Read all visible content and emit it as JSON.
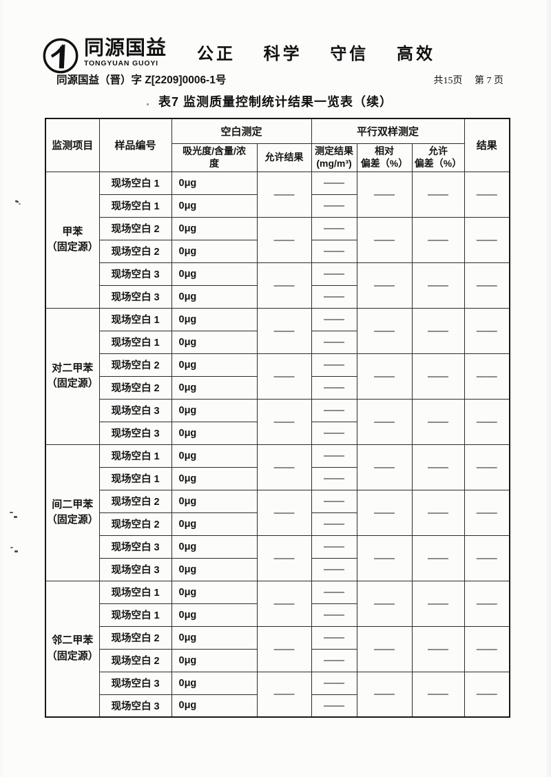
{
  "header": {
    "logo": {
      "name": "同源国益",
      "latin": "TONGYUAN GUOYI"
    },
    "slogan": {
      "items": [
        "公正",
        "科学",
        "守信",
        "高效"
      ]
    },
    "doc_number": "同源国益（晋）字 Z[2209]0006-1号",
    "pagination": {
      "total": "共15页",
      "current": "第 7 页"
    }
  },
  "title": "表7 监测质量控制统计结果一览表（续）",
  "table": {
    "columns": {
      "project": "监测项目",
      "sample_id": "样品编号",
      "blank_group": "空白测定",
      "parallel_group": "平行双样测定",
      "absorbance": "吸光度/含量/浓\n度",
      "allowed_result": "允许结果",
      "measured": "测定结果\n(mg/m³)",
      "relative_dev": "相对\n偏差（%）",
      "allowed_dev": "允许\n偏差（%）",
      "result": "结果"
    },
    "dash": "——",
    "groups": [
      {
        "project": "甲苯\n（固定源）",
        "rows": [
          {
            "sample": "现场空白 1",
            "blank_value": "0μg"
          },
          {
            "sample": "现场空白 1",
            "blank_value": "0μg"
          },
          {
            "sample": "现场空白 2",
            "blank_value": "0μg"
          },
          {
            "sample": "现场空白 2",
            "blank_value": "0μg"
          },
          {
            "sample": "现场空白 3",
            "blank_value": "0μg"
          },
          {
            "sample": "现场空白 3",
            "blank_value": "0μg"
          }
        ]
      },
      {
        "project": "对二甲苯\n（固定源）",
        "rows": [
          {
            "sample": "现场空白 1",
            "blank_value": "0μg"
          },
          {
            "sample": "现场空白 1",
            "blank_value": "0μg"
          },
          {
            "sample": "现场空白 2",
            "blank_value": "0μg"
          },
          {
            "sample": "现场空白 2",
            "blank_value": "0μg"
          },
          {
            "sample": "现场空白 3",
            "blank_value": "0μg"
          },
          {
            "sample": "现场空白 3",
            "blank_value": "0μg"
          }
        ]
      },
      {
        "project": "间二甲苯\n（固定源）",
        "rows": [
          {
            "sample": "现场空白 1",
            "blank_value": "0μg"
          },
          {
            "sample": "现场空白 1",
            "blank_value": "0μg"
          },
          {
            "sample": "现场空白 2",
            "blank_value": "0μg"
          },
          {
            "sample": "现场空白 2",
            "blank_value": "0μg"
          },
          {
            "sample": "现场空白 3",
            "blank_value": "0μg"
          },
          {
            "sample": "现场空白 3",
            "blank_value": "0μg"
          }
        ]
      },
      {
        "project": "邻二甲苯\n（固定源）",
        "rows": [
          {
            "sample": "现场空白 1",
            "blank_value": "0μg"
          },
          {
            "sample": "现场空白 1",
            "blank_value": "0μg"
          },
          {
            "sample": "现场空白 2",
            "blank_value": "0μg"
          },
          {
            "sample": "现场空白 2",
            "blank_value": "0μg"
          },
          {
            "sample": "现场空白 3",
            "blank_value": "0μg"
          },
          {
            "sample": "现场空白 3",
            "blank_value": "0μg"
          }
        ]
      }
    ]
  }
}
